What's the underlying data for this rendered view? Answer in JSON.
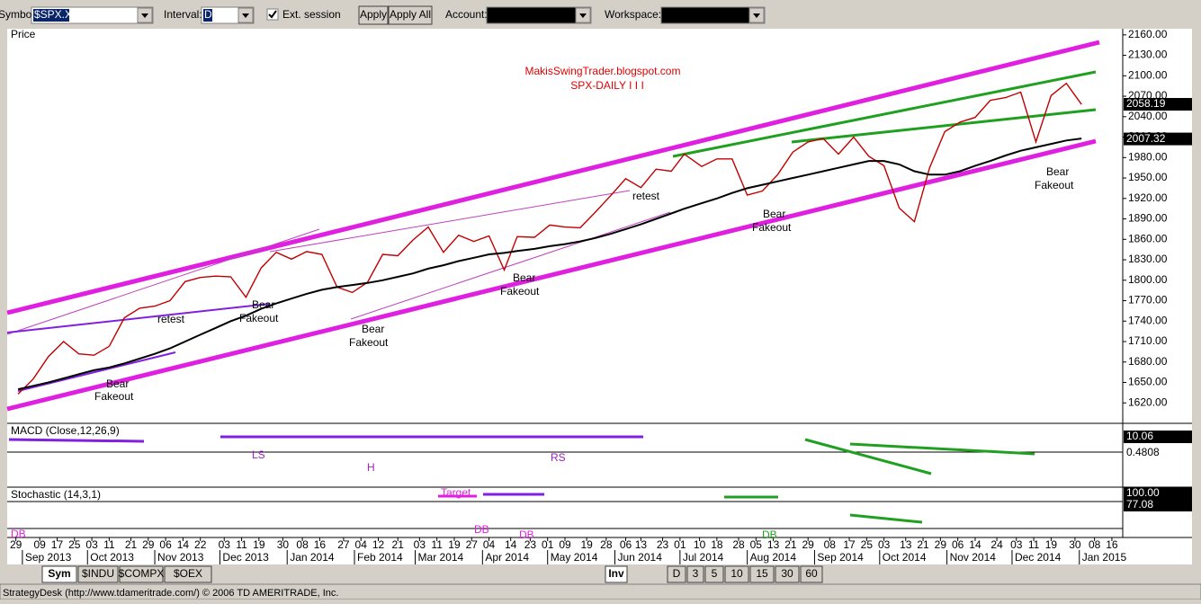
{
  "toolbar": {
    "symbol_label": "Symbol:",
    "symbol": "$SPX.X",
    "interval_label": "Interval:",
    "interval": "D",
    "ext_session": "Ext. session",
    "apply": "Apply",
    "apply_all": "Apply All",
    "account_label": "Account:",
    "workspace_label": "Workspace:"
  },
  "chart_data": {
    "type": "line",
    "panel_title": "Price",
    "title": "MakisSwingTrader.blogspot.com",
    "subtitle": "SPX-DAILY I I I",
    "x": [
      "2013-08-30",
      "2013-09-06",
      "2013-09-13",
      "2013-09-20",
      "2013-09-27",
      "2013-10-04",
      "2013-10-11",
      "2013-10-18",
      "2013-10-25",
      "2013-11-01",
      "2013-11-08",
      "2013-11-15",
      "2013-11-22",
      "2013-11-29",
      "2013-12-06",
      "2013-12-13",
      "2013-12-20",
      "2013-12-27",
      "2014-01-03",
      "2014-01-10",
      "2014-01-17",
      "2014-01-24",
      "2014-01-31",
      "2014-02-07",
      "2014-02-14",
      "2014-02-21",
      "2014-02-28",
      "2014-03-07",
      "2014-03-14",
      "2014-03-21",
      "2014-03-28",
      "2014-04-04",
      "2014-04-11",
      "2014-04-17",
      "2014-04-25",
      "2014-05-02",
      "2014-05-09",
      "2014-05-16",
      "2014-05-23",
      "2014-05-30",
      "2014-06-06",
      "2014-06-13",
      "2014-06-20",
      "2014-06-27",
      "2014-07-03",
      "2014-07-11",
      "2014-07-18",
      "2014-07-25",
      "2014-08-01",
      "2014-08-08",
      "2014-08-15",
      "2014-08-22",
      "2014-08-29",
      "2014-09-05",
      "2014-09-12",
      "2014-09-19",
      "2014-09-26",
      "2014-10-03",
      "2014-10-10",
      "2014-10-17",
      "2014-10-24",
      "2014-10-31",
      "2014-11-07",
      "2014-11-14",
      "2014-11-21",
      "2014-11-28",
      "2014-12-05",
      "2014-12-12",
      "2014-12-19",
      "2014-12-26",
      "2015-01-02"
    ],
    "series": [
      {
        "color": "#c00000",
        "last_value": 2058.19,
        "values": [
          1633,
          1655,
          1688,
          1710,
          1692,
          1690,
          1703,
          1745,
          1759,
          1762,
          1770,
          1798,
          1804,
          1806,
          1805,
          1775,
          1818,
          1841,
          1831,
          1842,
          1838,
          1790,
          1782,
          1797,
          1838,
          1836,
          1859,
          1878,
          1841,
          1866,
          1857,
          1865,
          1815,
          1864,
          1863,
          1881,
          1878,
          1877,
          1900,
          1924,
          1949,
          1936,
          1963,
          1960,
          1985,
          1967,
          1978,
          1978,
          1925,
          1931,
          1955,
          1988,
          2003,
          2008,
          1985,
          2010,
          1982,
          1968,
          1906,
          1886,
          1965,
          2018,
          2032,
          2039,
          2064,
          2068,
          2076,
          2003,
          2071,
          2089,
          2058
        ]
      },
      {
        "color": "#000000",
        "last_value": 2007.32,
        "values": [
          1640,
          1645,
          1650,
          1656,
          1662,
          1668,
          1672,
          1678,
          1685,
          1692,
          1700,
          1710,
          1720,
          1730,
          1740,
          1748,
          1758,
          1766,
          1773,
          1780,
          1786,
          1790,
          1793,
          1796,
          1800,
          1805,
          1810,
          1817,
          1822,
          1828,
          1833,
          1838,
          1840,
          1843,
          1846,
          1850,
          1853,
          1857,
          1862,
          1868,
          1875,
          1882,
          1890,
          1898,
          1905,
          1913,
          1920,
          1928,
          1935,
          1940,
          1945,
          1950,
          1955,
          1960,
          1965,
          1970,
          1975,
          1975,
          1970,
          1960,
          1955,
          1955,
          1960,
          1968,
          1975,
          1983,
          1990,
          1995,
          2000,
          2005,
          2008
        ]
      }
    ],
    "xlim": [
      "2013-08-25",
      "2015-01-21"
    ],
    "ylim": [
      1590,
      2169
    ],
    "yticks": [
      {
        "value": 1620,
        "label": "1620.00"
      },
      {
        "value": 1650,
        "label": "1650.00"
      },
      {
        "value": 1680,
        "label": "1680.00"
      },
      {
        "value": 1710,
        "label": "1710.00"
      },
      {
        "value": 1740,
        "label": "1740.00"
      },
      {
        "value": 1770,
        "label": "1770.00"
      },
      {
        "value": 1800,
        "label": "1800.00"
      },
      {
        "value": 1830,
        "label": "1830.00"
      },
      {
        "value": 1860,
        "label": "1860.00"
      },
      {
        "value": 1890,
        "label": "1890.00"
      },
      {
        "value": 1920,
        "label": "1920.00"
      },
      {
        "value": 1950,
        "label": "1950.00"
      },
      {
        "value": 1980,
        "label": "1980.00"
      },
      {
        "value": 2010,
        "label": "2010.00"
      },
      {
        "value": 2040,
        "label": "2040.00"
      },
      {
        "value": 2070,
        "label": "2070.00"
      },
      {
        "value": 2100,
        "label": "2100.00"
      },
      {
        "value": 2130,
        "label": "2130.00"
      },
      {
        "value": 2160,
        "label": "2160.00"
      }
    ],
    "xticks": [
      {
        "value": "2013-08-29",
        "label": "29"
      },
      {
        "value": "2013-09-09",
        "label": "09"
      },
      {
        "value": "2013-09-17",
        "label": "17"
      },
      {
        "value": "2013-09-25",
        "label": "25"
      },
      {
        "value": "2013-10-03",
        "label": "03"
      },
      {
        "value": "2013-10-11",
        "label": "11"
      },
      {
        "value": "2013-10-21",
        "label": "21"
      },
      {
        "value": "2013-10-29",
        "label": "29"
      },
      {
        "value": "2013-11-06",
        "label": "06"
      },
      {
        "value": "2013-11-14",
        "label": "14"
      },
      {
        "value": "2013-11-22",
        "label": "22"
      },
      {
        "value": "2013-12-03",
        "label": "03"
      },
      {
        "value": "2013-12-11",
        "label": "11"
      },
      {
        "value": "2013-12-19",
        "label": "19"
      },
      {
        "value": "2013-12-30",
        "label": "30"
      },
      {
        "value": "2014-01-08",
        "label": "08"
      },
      {
        "value": "2014-01-16",
        "label": "16"
      },
      {
        "value": "2014-01-27",
        "label": "27"
      },
      {
        "value": "2014-02-04",
        "label": "04"
      },
      {
        "value": "2014-02-12",
        "label": "12"
      },
      {
        "value": "2014-02-21",
        "label": "21"
      },
      {
        "value": "2014-03-03",
        "label": "03"
      },
      {
        "value": "2014-03-11",
        "label": "11"
      },
      {
        "value": "2014-03-19",
        "label": "19"
      },
      {
        "value": "2014-03-27",
        "label": "27"
      },
      {
        "value": "2014-04-04",
        "label": "04"
      },
      {
        "value": "2014-04-14",
        "label": "14"
      },
      {
        "value": "2014-04-23",
        "label": "23"
      },
      {
        "value": "2014-05-01",
        "label": "01"
      },
      {
        "value": "2014-05-09",
        "label": "09"
      },
      {
        "value": "2014-05-19",
        "label": "19"
      },
      {
        "value": "2014-05-28",
        "label": "28"
      },
      {
        "value": "2014-06-06",
        "label": "06"
      },
      {
        "value": "2014-06-13",
        "label": "13"
      },
      {
        "value": "2014-06-23",
        "label": "23"
      },
      {
        "value": "2014-07-01",
        "label": "01"
      },
      {
        "value": "2014-07-10",
        "label": "10"
      },
      {
        "value": "2014-07-18",
        "label": "18"
      },
      {
        "value": "2014-07-28",
        "label": "28"
      },
      {
        "value": "2014-08-05",
        "label": "05"
      },
      {
        "value": "2014-08-13",
        "label": "13"
      },
      {
        "value": "2014-08-21",
        "label": "21"
      },
      {
        "value": "2014-08-29",
        "label": "29"
      },
      {
        "value": "2014-09-08",
        "label": "08"
      },
      {
        "value": "2014-09-17",
        "label": "17"
      },
      {
        "value": "2014-09-25",
        "label": "25"
      },
      {
        "value": "2014-10-03",
        "label": "03"
      },
      {
        "value": "2014-10-13",
        "label": "13"
      },
      {
        "value": "2014-10-21",
        "label": "21"
      },
      {
        "value": "2014-10-29",
        "label": "29"
      },
      {
        "value": "2014-11-06",
        "label": "06"
      },
      {
        "value": "2014-11-14",
        "label": "14"
      },
      {
        "value": "2014-11-24",
        "label": "24"
      },
      {
        "value": "2014-12-03",
        "label": "03"
      },
      {
        "value": "2014-12-11",
        "label": "11"
      },
      {
        "value": "2014-12-19",
        "label": "19"
      },
      {
        "value": "2014-12-30",
        "label": "30"
      },
      {
        "value": "2015-01-08",
        "label": "08"
      },
      {
        "value": "2015-01-16",
        "label": "16"
      }
    ],
    "month_ticks": [
      {
        "value": "2013-09-01",
        "label": "Sep 2013"
      },
      {
        "value": "2013-10-01",
        "label": "Oct 2013"
      },
      {
        "value": "2013-11-01",
        "label": "Nov 2013"
      },
      {
        "value": "2013-12-01",
        "label": "Dec 2013"
      },
      {
        "value": "2014-01-01",
        "label": "Jan 2014"
      },
      {
        "value": "2014-02-01",
        "label": "Feb 2014"
      },
      {
        "value": "2014-03-01",
        "label": "Mar 2014"
      },
      {
        "value": "2014-04-01",
        "label": "Apr 2014"
      },
      {
        "value": "2014-05-01",
        "label": "May 2014"
      },
      {
        "value": "2014-06-01",
        "label": "Jun 2014"
      },
      {
        "value": "2014-07-01",
        "label": "Jul 2014"
      },
      {
        "value": "2014-08-01",
        "label": "Aug 2014"
      },
      {
        "value": "2014-09-01",
        "label": "Sep 2014"
      },
      {
        "value": "2014-10-01",
        "label": "Oct 2014"
      },
      {
        "value": "2014-11-01",
        "label": "Nov 2014"
      },
      {
        "value": "2014-12-01",
        "label": "Dec 2014"
      },
      {
        "value": "2015-01-01",
        "label": "Jan 2015"
      }
    ],
    "annotations": [
      "Bear",
      "Fakeout",
      "retest",
      "Bear",
      "Fakeout",
      "Bear",
      "Fakeout",
      "Bear",
      "Fakeout",
      "retest",
      "Bear",
      "Fakeout",
      "Bear",
      "Fakeout"
    ],
    "macd": {
      "title": "MACD (Close,12,26,9)",
      "labels": [
        10.06,
        0.4808
      ],
      "annotations": [
        "LS",
        "H",
        "RS"
      ]
    },
    "stochastic": {
      "title": "Stochastic (14,3,1)",
      "labels": [
        {
          "value": 100,
          "label": "100.00"
        },
        77.08
      ],
      "annotations": [
        "DB",
        "Target",
        "DB",
        "DB",
        "DB"
      ]
    }
  },
  "tabs": [
    "Sym",
    "$INDU",
    "$COMPX",
    "$OEX"
  ],
  "intervals": [
    "Inv",
    "D",
    "3",
    "5",
    "10",
    "15",
    "30",
    "60"
  ],
  "status": "StrategyDesk (http://www.tdameritrade.com/) © 2006 TD AMERITRADE, Inc."
}
